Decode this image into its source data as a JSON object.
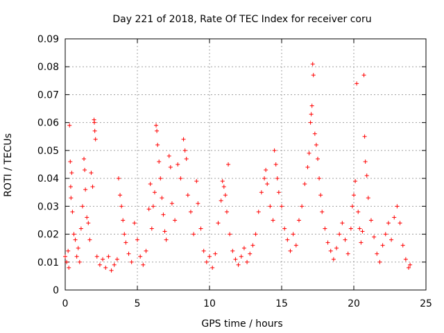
{
  "chart_data": {
    "type": "scatter",
    "title": "Day 221 of 2018, Rate Of TEC Index for receiver coru",
    "xlabel": "GPS time / hours",
    "ylabel": "ROTI / TECUs",
    "xlim": [
      0,
      25
    ],
    "ylim": [
      0,
      0.09
    ],
    "x_ticks": [
      0,
      5,
      10,
      15,
      20,
      25
    ],
    "y_ticks": [
      0,
      0.01,
      0.02,
      0.03,
      0.04,
      0.05,
      0.06,
      0.07,
      0.08,
      0.09
    ],
    "x_tick_labels": [
      "0",
      "5",
      "10",
      "15",
      "20",
      "25"
    ],
    "y_tick_labels": [
      "0",
      "0.01",
      "0.02",
      "0.03",
      "0.04",
      "0.05",
      "0.06",
      "0.07",
      "0.08",
      "0.09"
    ],
    "grid": true,
    "marker": "+",
    "color": "#ff0000",
    "series": [
      {
        "points": [
          [
            0.0,
            0.012
          ],
          [
            0.1,
            0.01
          ],
          [
            0.2,
            0.014
          ],
          [
            0.25,
            0.008
          ],
          [
            0.3,
            0.059
          ],
          [
            0.35,
            0.046
          ],
          [
            0.38,
            0.037
          ],
          [
            0.4,
            0.033
          ],
          [
            0.45,
            0.042
          ],
          [
            0.5,
            0.028
          ],
          [
            0.6,
            0.02
          ],
          [
            0.7,
            0.018
          ],
          [
            0.8,
            0.012
          ],
          [
            0.9,
            0.015
          ],
          [
            1.0,
            0.01
          ],
          [
            1.1,
            0.022
          ],
          [
            1.2,
            0.03
          ],
          [
            1.3,
            0.047
          ],
          [
            1.35,
            0.043
          ],
          [
            1.4,
            0.036
          ],
          [
            1.5,
            0.026
          ],
          [
            1.6,
            0.024
          ],
          [
            1.7,
            0.018
          ],
          [
            1.8,
            0.042
          ],
          [
            1.9,
            0.037
          ],
          [
            2.0,
            0.061
          ],
          [
            2.02,
            0.06
          ],
          [
            2.05,
            0.057
          ],
          [
            2.1,
            0.054
          ],
          [
            2.2,
            0.012
          ],
          [
            2.4,
            0.009
          ],
          [
            2.6,
            0.011
          ],
          [
            2.8,
            0.008
          ],
          [
            3.0,
            0.012
          ],
          [
            3.2,
            0.007
          ],
          [
            3.4,
            0.009
          ],
          [
            3.6,
            0.011
          ],
          [
            3.7,
            0.04
          ],
          [
            3.8,
            0.034
          ],
          [
            3.9,
            0.03
          ],
          [
            4.0,
            0.025
          ],
          [
            4.1,
            0.02
          ],
          [
            4.2,
            0.017
          ],
          [
            4.4,
            0.013
          ],
          [
            4.6,
            0.01
          ],
          [
            4.8,
            0.024
          ],
          [
            5.0,
            0.018
          ],
          [
            5.2,
            0.012
          ],
          [
            5.4,
            0.009
          ],
          [
            5.6,
            0.014
          ],
          [
            5.8,
            0.029
          ],
          [
            5.9,
            0.038
          ],
          [
            6.0,
            0.022
          ],
          [
            6.1,
            0.03
          ],
          [
            6.2,
            0.035
          ],
          [
            6.3,
            0.059
          ],
          [
            6.35,
            0.057
          ],
          [
            6.4,
            0.052
          ],
          [
            6.5,
            0.046
          ],
          [
            6.6,
            0.04
          ],
          [
            6.7,
            0.033
          ],
          [
            6.8,
            0.027
          ],
          [
            6.9,
            0.021
          ],
          [
            7.0,
            0.018
          ],
          [
            7.2,
            0.048
          ],
          [
            7.3,
            0.044
          ],
          [
            7.4,
            0.031
          ],
          [
            7.6,
            0.025
          ],
          [
            7.8,
            0.045
          ],
          [
            8.0,
            0.04
          ],
          [
            8.2,
            0.054
          ],
          [
            8.3,
            0.05
          ],
          [
            8.4,
            0.047
          ],
          [
            8.5,
            0.034
          ],
          [
            8.7,
            0.028
          ],
          [
            8.9,
            0.02
          ],
          [
            9.1,
            0.039
          ],
          [
            9.2,
            0.031
          ],
          [
            9.4,
            0.022
          ],
          [
            9.6,
            0.014
          ],
          [
            9.8,
            0.01
          ],
          [
            10.0,
            0.012
          ],
          [
            10.2,
            0.008
          ],
          [
            10.4,
            0.013
          ],
          [
            10.6,
            0.024
          ],
          [
            10.8,
            0.032
          ],
          [
            10.9,
            0.039
          ],
          [
            11.0,
            0.037
          ],
          [
            11.1,
            0.034
          ],
          [
            11.2,
            0.028
          ],
          [
            11.3,
            0.045
          ],
          [
            11.4,
            0.02
          ],
          [
            11.6,
            0.014
          ],
          [
            11.8,
            0.011
          ],
          [
            12.0,
            0.009
          ],
          [
            12.2,
            0.012
          ],
          [
            12.4,
            0.015
          ],
          [
            12.6,
            0.01
          ],
          [
            12.8,
            0.013
          ],
          [
            13.0,
            0.016
          ],
          [
            13.2,
            0.02
          ],
          [
            13.4,
            0.028
          ],
          [
            13.6,
            0.035
          ],
          [
            13.8,
            0.04
          ],
          [
            13.9,
            0.043
          ],
          [
            14.0,
            0.038
          ],
          [
            14.2,
            0.03
          ],
          [
            14.4,
            0.025
          ],
          [
            14.5,
            0.05
          ],
          [
            14.6,
            0.045
          ],
          [
            14.7,
            0.04
          ],
          [
            14.8,
            0.035
          ],
          [
            15.0,
            0.03
          ],
          [
            15.2,
            0.022
          ],
          [
            15.4,
            0.018
          ],
          [
            15.6,
            0.014
          ],
          [
            15.8,
            0.02
          ],
          [
            16.0,
            0.016
          ],
          [
            16.2,
            0.025
          ],
          [
            16.4,
            0.03
          ],
          [
            16.6,
            0.038
          ],
          [
            16.8,
            0.044
          ],
          [
            16.9,
            0.049
          ],
          [
            17.0,
            0.06
          ],
          [
            17.05,
            0.063
          ],
          [
            17.1,
            0.066
          ],
          [
            17.15,
            0.081
          ],
          [
            17.2,
            0.077
          ],
          [
            17.3,
            0.056
          ],
          [
            17.4,
            0.052
          ],
          [
            17.5,
            0.047
          ],
          [
            17.6,
            0.04
          ],
          [
            17.7,
            0.034
          ],
          [
            17.8,
            0.028
          ],
          [
            18.0,
            0.022
          ],
          [
            18.2,
            0.017
          ],
          [
            18.4,
            0.014
          ],
          [
            18.6,
            0.011
          ],
          [
            18.8,
            0.015
          ],
          [
            19.0,
            0.02
          ],
          [
            19.2,
            0.024
          ],
          [
            19.4,
            0.018
          ],
          [
            19.6,
            0.013
          ],
          [
            19.8,
            0.022
          ],
          [
            19.9,
            0.03
          ],
          [
            20.0,
            0.034
          ],
          [
            20.1,
            0.039
          ],
          [
            20.2,
            0.074
          ],
          [
            20.3,
            0.028
          ],
          [
            20.4,
            0.022
          ],
          [
            20.5,
            0.017
          ],
          [
            20.6,
            0.021
          ],
          [
            20.7,
            0.077
          ],
          [
            20.75,
            0.055
          ],
          [
            20.8,
            0.046
          ],
          [
            20.9,
            0.041
          ],
          [
            21.0,
            0.033
          ],
          [
            21.2,
            0.025
          ],
          [
            21.4,
            0.019
          ],
          [
            21.6,
            0.013
          ],
          [
            21.8,
            0.01
          ],
          [
            22.0,
            0.016
          ],
          [
            22.2,
            0.02
          ],
          [
            22.4,
            0.024
          ],
          [
            22.6,
            0.018
          ],
          [
            22.8,
            0.026
          ],
          [
            23.0,
            0.03
          ],
          [
            23.2,
            0.024
          ],
          [
            23.4,
            0.016
          ],
          [
            23.6,
            0.011
          ],
          [
            23.8,
            0.008
          ],
          [
            23.9,
            0.009
          ]
        ]
      }
    ]
  }
}
